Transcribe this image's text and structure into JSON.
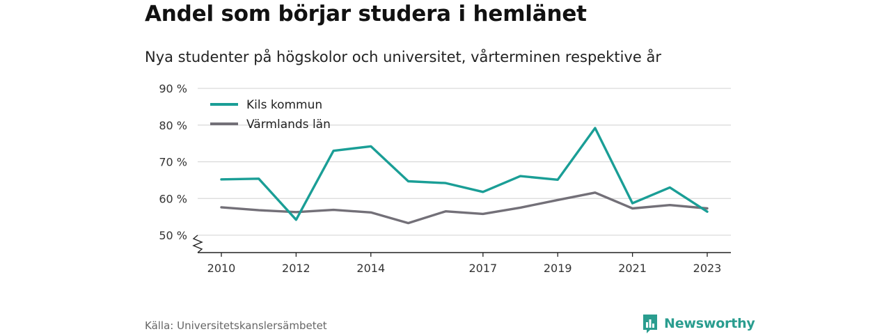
{
  "header": {
    "title": "Andel som börjar studera i hemlänet",
    "subtitle": "Nya studenter på högskolor och universitet, vårterminen respektive år"
  },
  "footer": {
    "source": "Källa: Universitetskanslersämbetet",
    "brand": "Newsworthy"
  },
  "colors": {
    "kils": "#1a9e96",
    "varmland": "#737078",
    "grid": "#d9d9d9",
    "brand": "#2a9d8f"
  },
  "icons": {
    "brand_logo": "bar-chart-speech-bubble-icon"
  },
  "chart_data": {
    "type": "line",
    "x": [
      2010,
      2011,
      2012,
      2013,
      2014,
      2015,
      2016,
      2017,
      2018,
      2019,
      2020,
      2021,
      2022,
      2023
    ],
    "x_tick_labels": [
      "2010",
      "2012",
      "2014",
      "2017",
      "2019",
      "2021",
      "2023"
    ],
    "x_tick_values": [
      2010,
      2012,
      2014,
      2017,
      2019,
      2021,
      2023
    ],
    "y_tick_labels": [
      "50 %",
      "60 %",
      "70 %",
      "80 %",
      "90 %"
    ],
    "y_tick_values": [
      50,
      60,
      70,
      80,
      90
    ],
    "ylim": [
      50,
      90
    ],
    "y_axis_break": true,
    "grid": true,
    "legend_position": "top-left",
    "series": [
      {
        "name": "Kils kommun",
        "color": "#1a9e96",
        "values": [
          65.2,
          65.4,
          54.2,
          73.0,
          74.2,
          64.7,
          64.2,
          61.8,
          66.1,
          65.1,
          79.2,
          58.7,
          63.0,
          56.4
        ]
      },
      {
        "name": "Värmlands län",
        "color": "#737078",
        "values": [
          57.6,
          56.8,
          56.3,
          56.9,
          56.2,
          53.3,
          56.5,
          55.8,
          57.5,
          59.6,
          61.6,
          57.3,
          58.2,
          57.3
        ]
      }
    ]
  }
}
